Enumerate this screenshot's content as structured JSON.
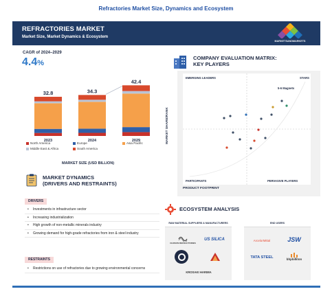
{
  "page_title": "Refractories Market Size, Dynamics and Ecosystem",
  "banner": {
    "title": "REFRACTORIES MARKET",
    "subtitle": "Market Size, Market Dynamics & Ecosystem",
    "logo_text": "MARKETSANDMARKETS"
  },
  "cagr": {
    "label": "CAGR of 2024–2029",
    "value": "4.4",
    "unit": "%"
  },
  "chart_data": {
    "type": "bar",
    "stacked": true,
    "categories": [
      "2023",
      "2024",
      "2029"
    ],
    "totals": [
      "32.8",
      "34.3",
      "42.4"
    ],
    "series": [
      {
        "name": "North America",
        "color": "#c8312a",
        "values": [
          2.5,
          2.6,
          3.2
        ]
      },
      {
        "name": "Europe",
        "color": "#2f5fa8",
        "values": [
          3.4,
          3.5,
          4.2
        ]
      },
      {
        "name": "Asia Pacific",
        "color": "#f5a04a",
        "values": [
          21.5,
          22.5,
          28.1
        ]
      },
      {
        "name": "Middle East & Africa",
        "color": "#b9c4d6",
        "values": [
          1.6,
          1.7,
          2.1
        ]
      },
      {
        "name": "South America",
        "color": "#d8492c",
        "values": [
          3.8,
          4.0,
          4.8
        ]
      }
    ],
    "xlabel": "MARKET SIZE (USD BILLION)",
    "ylim": [
      0,
      46
    ]
  },
  "legend": [
    {
      "name": "North America",
      "color": "#c8312a"
    },
    {
      "name": "Europe",
      "color": "#2f5fa8"
    },
    {
      "name": "Asia Pacific",
      "color": "#f5a04a"
    },
    {
      "name": "Middle East & Africa",
      "color": "#b9c4d6"
    },
    {
      "name": "South America",
      "color": "#d8492c"
    }
  ],
  "market_dynamics": {
    "title_line1": "MARKET DYNAMICS",
    "title_line2": "(DRIVERS AND RESTRAINTS)",
    "drivers_label": "DRIVERS",
    "drivers": [
      "Investments in infrastructure sector",
      "Increasing industrialization",
      "High growth of non-metallic minerals industry",
      "Growing demand for high-grade refractories from iron & steel industry"
    ],
    "restraints_label": "RESTRAINTS",
    "restraints": [
      "Restrictions on use of refractories due to growing environmental concerns"
    ]
  },
  "matrix": {
    "title_line1": "COMPANY EVALUATION MATRIX:",
    "title_line2": "KEY PLAYERS",
    "quadrants": {
      "top_left": "EMERGING LEADERS",
      "top_right": "STARS",
      "bottom_left": "PARTICIPANTS",
      "bottom_right": "PERVASIVE PLAYERS"
    },
    "magnets_label": "5-6 Magnets",
    "y_axis": "MARKET SHARE/RANK",
    "x_axis": "PRODUCT FOOTPRINT"
  },
  "ecosystem": {
    "title": "ECOSYSTEM ANALYSIS",
    "left_head": "RAW MATERIAL SUPPLIERS & MANUFACTURERS",
    "right_head": "END USERS",
    "left_logos": [
      "CHOSUN REFRACTORIES",
      "US SILICA",
      "CALDERYS",
      "KROSAKI",
      "KROSAKI HARIMA"
    ],
    "right_logos": [
      "ArcelorMittal",
      "JSW",
      "TATA STEEL",
      "bhpbilliton"
    ]
  },
  "colors": {
    "navy": "#1f3a64",
    "accent_blue": "#2f79c8",
    "driver_tag": "#f7d9d9"
  }
}
